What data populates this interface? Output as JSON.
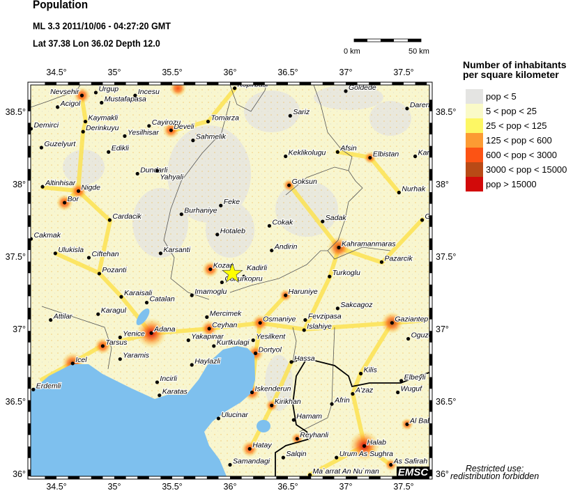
{
  "header": {
    "title": "Population",
    "event_line": "ML 3.3  2011/10/06 - 04:27:20 GMT",
    "location_line": "Lat 37.38    Lon  36.02    Depth  12.0"
  },
  "epicenter": {
    "lat": 37.38,
    "lon": 36.02,
    "depth": 12.0,
    "magnitude": "ML 3.3",
    "icon": "star-icon",
    "color": "#ffff00"
  },
  "scale_bar": {
    "start_label": "0 km",
    "end_label": "50 km"
  },
  "map": {
    "lon_range": [
      34.28,
      37.72
    ],
    "lat_range": [
      35.98,
      38.68
    ],
    "lon_ticks": [
      {
        "v": 34.5,
        "label": "34.5°"
      },
      {
        "v": 35,
        "label": "35°"
      },
      {
        "v": 35.5,
        "label": "35.5°"
      },
      {
        "v": 36,
        "label": "36°"
      },
      {
        "v": 36.5,
        "label": "36.5°"
      },
      {
        "v": 37,
        "label": "37°"
      },
      {
        "v": 37.5,
        "label": "37.5°"
      }
    ],
    "lat_ticks": [
      {
        "v": 38.5,
        "label": "38.5°"
      },
      {
        "v": 38,
        "label": "38°"
      },
      {
        "v": 37.5,
        "label": "37.5°"
      },
      {
        "v": 37,
        "label": "37°"
      },
      {
        "v": 36.5,
        "label": "36.5°"
      },
      {
        "v": 36,
        "label": "36°"
      }
    ],
    "sea_color": "#7ec0ee",
    "land_color": "#f8f6cf",
    "cities": [
      {
        "name": "Nevsehir",
        "lon": 34.72,
        "lat": 38.61
      },
      {
        "name": "Urgup",
        "lon": 34.84,
        "lat": 38.63
      },
      {
        "name": "Mustafapasa",
        "lon": 34.89,
        "lat": 38.56
      },
      {
        "name": "Incesu",
        "lon": 35.18,
        "lat": 38.61
      },
      {
        "name": "Acigol",
        "lon": 34.51,
        "lat": 38.53
      },
      {
        "name": "Kaymakli",
        "lon": 34.75,
        "lat": 38.43
      },
      {
        "name": "Cayirozu",
        "lon": 35.3,
        "lat": 38.4
      },
      {
        "name": "Develi",
        "lon": 35.49,
        "lat": 38.37
      },
      {
        "name": "Tomarza",
        "lon": 35.81,
        "lat": 38.43
      },
      {
        "name": "Demirci",
        "lon": 34.28,
        "lat": 38.38
      },
      {
        "name": "Derinkuyu",
        "lon": 34.73,
        "lat": 38.36
      },
      {
        "name": "Yesilhisar",
        "lon": 35.09,
        "lat": 38.33
      },
      {
        "name": "Sahmelik",
        "lon": 35.68,
        "lat": 38.3
      },
      {
        "name": "Guzelyurt",
        "lon": 34.37,
        "lat": 38.25
      },
      {
        "name": "Edikli",
        "lon": 34.95,
        "lat": 38.22
      },
      {
        "name": "Dundarli",
        "lon": 35.2,
        "lat": 38.07
      },
      {
        "name": "Yahyali",
        "lon": 35.37,
        "lat": 38.09
      },
      {
        "name": "Altinhisar",
        "lon": 34.38,
        "lat": 37.98
      },
      {
        "name": "Nigde",
        "lon": 34.69,
        "lat": 37.95
      },
      {
        "name": "Bor",
        "lon": 34.57,
        "lat": 37.87
      },
      {
        "name": "Feke",
        "lon": 35.92,
        "lat": 37.85
      },
      {
        "name": "Burhaniye",
        "lon": 35.58,
        "lat": 37.79
      },
      {
        "name": "Cardacik",
        "lon": 34.96,
        "lat": 37.75
      },
      {
        "name": "Hotaleb",
        "lon": 35.89,
        "lat": 37.65
      },
      {
        "name": "Cakmak",
        "lon": 34.28,
        "lat": 37.62
      },
      {
        "name": "Ulukisla",
        "lon": 34.49,
        "lat": 37.52
      },
      {
        "name": "Ciftehan",
        "lon": 34.78,
        "lat": 37.49
      },
      {
        "name": "Karsanti",
        "lon": 35.4,
        "lat": 37.52
      },
      {
        "name": "Kozan",
        "lon": 35.83,
        "lat": 37.41
      },
      {
        "name": "Pozanti",
        "lon": 34.87,
        "lat": 37.38
      },
      {
        "name": "Kopirbasi",
        "lon": 36.04,
        "lat": 38.66
      },
      {
        "name": "Goldede",
        "lon": 37.0,
        "lat": 38.64
      },
      {
        "name": "Darende",
        "lon": 37.53,
        "lat": 38.52
      },
      {
        "name": "Sariz",
        "lon": 36.52,
        "lat": 38.47
      },
      {
        "name": "Afsin",
        "lon": 36.93,
        "lat": 38.22
      },
      {
        "name": "Keklikolugu",
        "lon": 36.48,
        "lat": 38.19
      },
      {
        "name": "Elbistan",
        "lon": 37.21,
        "lat": 38.18
      },
      {
        "name": "Kangal",
        "lon": 37.6,
        "lat": 38.19
      },
      {
        "name": "Goksun",
        "lon": 36.51,
        "lat": 37.99
      },
      {
        "name": "Nurhak",
        "lon": 37.46,
        "lat": 37.94
      },
      {
        "name": "Golbasi",
        "lon": 37.66,
        "lat": 37.75
      },
      {
        "name": "Sadak",
        "lon": 36.8,
        "lat": 37.74
      },
      {
        "name": "Cokak",
        "lon": 36.34,
        "lat": 37.71
      },
      {
        "name": "Andirin",
        "lon": 36.36,
        "lat": 37.54
      },
      {
        "name": "Kahramanmaras",
        "lon": 36.94,
        "lat": 37.56
      },
      {
        "name": "Pazarcik",
        "lon": 37.31,
        "lat": 37.46
      },
      {
        "name": "Turkoglu",
        "lon": 36.86,
        "lat": 37.36
      },
      {
        "name": "Kadirli",
        "lon": 36.12,
        "lat": 37.36
      },
      {
        "name": "Cukurkopru",
        "lon": 35.93,
        "lat": 37.32
      },
      {
        "name": "Karaisali",
        "lon": 35.06,
        "lat": 37.22
      },
      {
        "name": "Catalan",
        "lon": 35.28,
        "lat": 37.18
      },
      {
        "name": "Imamoglu",
        "lon": 35.67,
        "lat": 37.23
      },
      {
        "name": "Karagul",
        "lon": 34.86,
        "lat": 37.1
      },
      {
        "name": "Attilar",
        "lon": 34.45,
        "lat": 37.06
      },
      {
        "name": "Mercimek",
        "lon": 35.8,
        "lat": 37.08
      },
      {
        "name": "Ceyhan",
        "lon": 35.82,
        "lat": 37.0
      },
      {
        "name": "Adana",
        "lon": 35.32,
        "lat": 36.97
      },
      {
        "name": "Yenice",
        "lon": 35.05,
        "lat": 36.94
      },
      {
        "name": "Yakapinar",
        "lon": 35.64,
        "lat": 36.92
      },
      {
        "name": "Tarsus",
        "lon": 34.9,
        "lat": 36.88
      },
      {
        "name": "Kurtkulagi",
        "lon": 35.86,
        "lat": 36.88
      },
      {
        "name": "Yaramis",
        "lon": 35.05,
        "lat": 36.79
      },
      {
        "name": "Icel",
        "lon": 34.64,
        "lat": 36.76
      },
      {
        "name": "Haylazli",
        "lon": 35.67,
        "lat": 36.75
      },
      {
        "name": "Incirli",
        "lon": 35.37,
        "lat": 36.63
      },
      {
        "name": "Erdemli",
        "lon": 34.3,
        "lat": 36.58
      },
      {
        "name": "Karatas",
        "lon": 35.39,
        "lat": 36.54
      },
      {
        "name": "Ulucinar",
        "lon": 35.9,
        "lat": 36.38
      },
      {
        "name": "Samandagi",
        "lon": 36.0,
        "lat": 36.06
      },
      {
        "name": "Haruniye",
        "lon": 36.48,
        "lat": 37.23
      },
      {
        "name": "Sakcagoz",
        "lon": 36.93,
        "lat": 37.14
      },
      {
        "name": "Fevzipasa",
        "lon": 36.65,
        "lat": 37.06
      },
      {
        "name": "Osmaniye",
        "lon": 36.26,
        "lat": 37.04
      },
      {
        "name": "Gaziantep",
        "lon": 37.4,
        "lat": 37.04
      },
      {
        "name": "Islahiye",
        "lon": 36.64,
        "lat": 36.99
      },
      {
        "name": "Yesilkent",
        "lon": 36.2,
        "lat": 36.92
      },
      {
        "name": "Oguzeli",
        "lon": 37.54,
        "lat": 36.93
      },
      {
        "name": "Dortyol",
        "lon": 36.22,
        "lat": 36.83
      },
      {
        "name": "Hassa",
        "lon": 36.53,
        "lat": 36.77
      },
      {
        "name": "Kilis",
        "lon": 37.13,
        "lat": 36.69
      },
      {
        "name": "Elbeyli",
        "lon": 37.48,
        "lat": 36.64
      },
      {
        "name": "Iskenderun",
        "lon": 36.19,
        "lat": 36.56
      },
      {
        "name": "A'zaz",
        "lon": 37.06,
        "lat": 36.55
      },
      {
        "name": "Wuguf",
        "lon": 37.45,
        "lat": 36.56
      },
      {
        "name": "Afrin",
        "lon": 36.88,
        "lat": 36.48
      },
      {
        "name": "Kirikhan",
        "lon": 36.36,
        "lat": 36.47
      },
      {
        "name": "Hamam",
        "lon": 36.55,
        "lat": 36.37
      },
      {
        "name": "Al Bab",
        "lon": 37.53,
        "lat": 36.34
      },
      {
        "name": "Reyhanli",
        "lon": 36.58,
        "lat": 36.24
      },
      {
        "name": "Halab",
        "lon": 37.16,
        "lat": 36.19
      },
      {
        "name": "Hatay",
        "lon": 36.17,
        "lat": 36.17
      },
      {
        "name": "Salqin",
        "lon": 36.46,
        "lat": 36.11
      },
      {
        "name": "Urum As Sughra",
        "lon": 36.92,
        "lat": 36.11
      },
      {
        "name": "As Safirah",
        "lon": 37.39,
        "lat": 36.06
      },
      {
        "name": "Ma`arrat An Nu`man",
        "lon": 36.69,
        "lat": 35.99
      }
    ],
    "hotspots": [
      {
        "lon": 35.32,
        "lat": 36.97,
        "level": "pop > 15000"
      },
      {
        "lon": 37.16,
        "lat": 36.19,
        "level": "pop > 15000"
      },
      {
        "lon": 37.4,
        "lat": 37.04,
        "level": "3000 < pop < 15000"
      },
      {
        "lon": 36.94,
        "lat": 37.56,
        "level": "3000 < pop < 15000"
      },
      {
        "lon": 34.64,
        "lat": 36.76,
        "level": "3000 < pop < 15000"
      },
      {
        "lon": 34.9,
        "lat": 36.88,
        "level": "600 < pop < 3000"
      },
      {
        "lon": 36.26,
        "lat": 37.04,
        "level": "600 < pop < 3000"
      },
      {
        "lon": 34.72,
        "lat": 38.61,
        "level": "600 < pop < 3000"
      },
      {
        "lon": 35.55,
        "lat": 38.66,
        "level": "600 < pop < 3000"
      },
      {
        "lon": 34.69,
        "lat": 37.95,
        "level": "600 < pop < 3000"
      },
      {
        "lon": 35.82,
        "lat": 37.0,
        "level": "600 < pop < 3000"
      },
      {
        "lon": 36.17,
        "lat": 36.17,
        "level": "600 < pop < 3000"
      },
      {
        "lon": 36.19,
        "lat": 36.56,
        "level": "600 < pop < 3000"
      },
      {
        "lon": 36.22,
        "lat": 36.83,
        "level": "600 < pop < 3000"
      },
      {
        "lon": 35.49,
        "lat": 38.37,
        "level": "600 < pop < 3000"
      },
      {
        "lon": 34.57,
        "lat": 37.87,
        "level": "600 < pop < 3000"
      },
      {
        "lon": 36.58,
        "lat": 36.24,
        "level": "125 < pop < 600"
      },
      {
        "lon": 36.51,
        "lat": 37.99,
        "level": "125 < pop < 600"
      },
      {
        "lon": 37.21,
        "lat": 38.18,
        "level": "125 < pop < 600"
      },
      {
        "lon": 35.83,
        "lat": 37.41,
        "level": "600 < pop < 3000"
      },
      {
        "lon": 36.48,
        "lat": 37.23,
        "level": "125 < pop < 600"
      },
      {
        "lon": 37.39,
        "lat": 36.06,
        "level": "125 < pop < 600"
      },
      {
        "lon": 37.53,
        "lat": 36.34,
        "level": "125 < pop < 600"
      },
      {
        "lon": 36.36,
        "lat": 36.47,
        "level": "125 < pop < 600"
      }
    ]
  },
  "legend": {
    "title_line1": "Number of inhabitants",
    "title_line2": "per square kilometer",
    "items": [
      {
        "label": "pop < 5",
        "color": "#e4e4e2"
      },
      {
        "label": "5 < pop < 25",
        "color": "#fafac8"
      },
      {
        "label": "25 < pop < 125",
        "color": "#fdf764"
      },
      {
        "label": "125 < pop < 600",
        "color": "#fc9b33"
      },
      {
        "label": "600 < pop < 3000",
        "color": "#fc5314"
      },
      {
        "label": "3000 < pop < 15000",
        "color": "#b94a16"
      },
      {
        "label": "pop > 15000",
        "color": "#d20a0a"
      }
    ]
  },
  "footer": {
    "restricted_line1": "Restricted use:",
    "restricted_line2": "redistribution forbidden",
    "logo_text": "EMSC"
  }
}
